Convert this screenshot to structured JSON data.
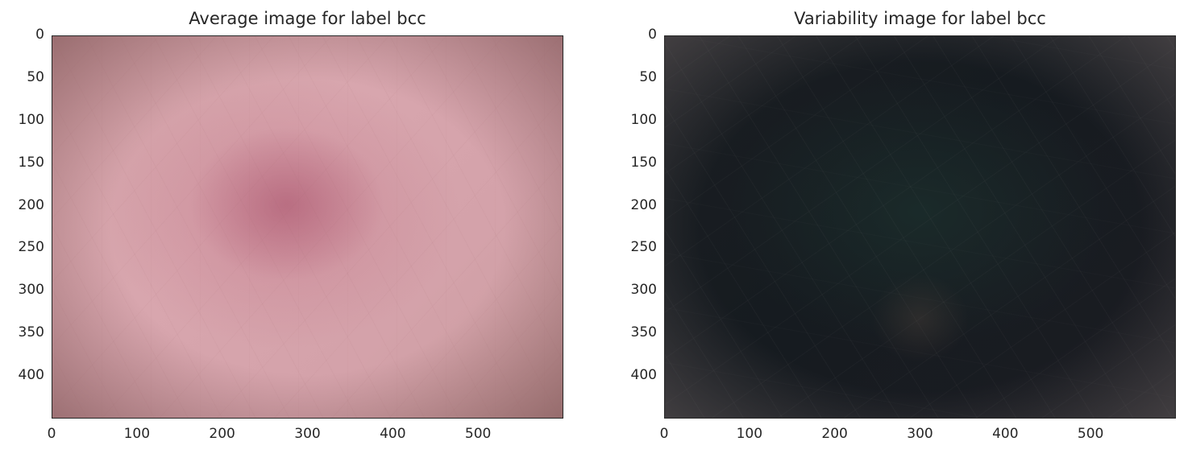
{
  "chart_data": [
    {
      "type": "heatmap",
      "title": "Average image for label bcc",
      "xlabel": "",
      "ylabel": "",
      "image_width": 600,
      "image_height": 450,
      "xlim": [
        0,
        600
      ],
      "ylim": [
        450,
        0
      ],
      "xticks": [
        0,
        100,
        200,
        300,
        400,
        500
      ],
      "yticks": [
        0,
        50,
        100,
        150,
        200,
        250,
        300,
        350,
        400
      ],
      "grid": false,
      "dominant_colors": [
        "#d4a2aa",
        "#b5707f",
        "#6e4646"
      ]
    },
    {
      "type": "heatmap",
      "title": "Variability image for label bcc",
      "xlabel": "",
      "ylabel": "",
      "image_width": 600,
      "image_height": 450,
      "xlim": [
        0,
        600
      ],
      "ylim": [
        450,
        0
      ],
      "xticks": [
        0,
        100,
        200,
        300,
        400,
        500
      ],
      "yticks": [
        0,
        50,
        100,
        150,
        200,
        250,
        300,
        350,
        400
      ],
      "grid": false,
      "dominant_colors": [
        "#181c21",
        "#1e3732",
        "#4b4648"
      ]
    }
  ]
}
